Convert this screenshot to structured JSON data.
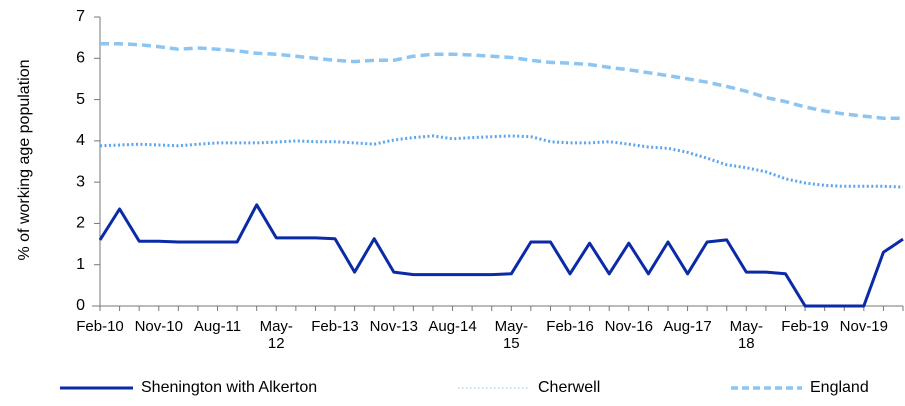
{
  "chart_data": {
    "type": "line",
    "ylabel": "% of working age population",
    "ylim": [
      0,
      7
    ],
    "yticks": [
      "0",
      "1",
      "2",
      "3",
      "4",
      "5",
      "6",
      "7"
    ],
    "x_tick_labels": [
      {
        "idx": 0,
        "lines": [
          "Feb-10"
        ]
      },
      {
        "idx": 3,
        "lines": [
          "Nov-10"
        ]
      },
      {
        "idx": 6,
        "lines": [
          "Aug-11"
        ]
      },
      {
        "idx": 9,
        "lines": [
          "May-",
          "12"
        ]
      },
      {
        "idx": 12,
        "lines": [
          "Feb-13"
        ]
      },
      {
        "idx": 15,
        "lines": [
          "Nov-13"
        ]
      },
      {
        "idx": 18,
        "lines": [
          "Aug-14"
        ]
      },
      {
        "idx": 21,
        "lines": [
          "May-",
          "15"
        ]
      },
      {
        "idx": 24,
        "lines": [
          "Feb-16"
        ]
      },
      {
        "idx": 27,
        "lines": [
          "Nov-16"
        ]
      },
      {
        "idx": 30,
        "lines": [
          "Aug-17"
        ]
      },
      {
        "idx": 33,
        "lines": [
          "May-",
          "18"
        ]
      },
      {
        "idx": 36,
        "lines": [
          "Feb-19"
        ]
      },
      {
        "idx": 39,
        "lines": [
          "Nov-19"
        ]
      }
    ],
    "grid": false,
    "legend_position": "bottom",
    "series": [
      {
        "name": "Shenington with Alkerton",
        "color": "#0b2aa6",
        "style": "solid",
        "values": [
          1.6,
          2.35,
          1.57,
          1.57,
          1.55,
          1.55,
          1.55,
          1.55,
          2.45,
          1.65,
          1.65,
          1.65,
          1.63,
          0.82,
          1.63,
          0.82,
          0.76,
          0.76,
          0.76,
          0.76,
          0.76,
          0.78,
          1.55,
          1.55,
          0.78,
          1.52,
          0.78,
          1.52,
          0.78,
          1.55,
          0.78,
          1.55,
          1.6,
          0.82,
          0.82,
          0.78,
          0.0,
          0.0,
          0.0,
          0.0,
          1.3,
          1.62
        ]
      },
      {
        "name": "Cherwell",
        "color": "#5aa6ee",
        "style": "dotted",
        "values": [
          3.88,
          3.9,
          3.92,
          3.9,
          3.88,
          3.92,
          3.95,
          3.95,
          3.95,
          3.97,
          4.0,
          3.98,
          3.98,
          3.95,
          3.92,
          4.02,
          4.08,
          4.12,
          4.05,
          4.08,
          4.1,
          4.12,
          4.1,
          3.98,
          3.95,
          3.95,
          3.98,
          3.92,
          3.85,
          3.82,
          3.72,
          3.58,
          3.42,
          3.35,
          3.25,
          3.08,
          2.98,
          2.92,
          2.9,
          2.9,
          2.9,
          2.88
        ]
      },
      {
        "name": "England",
        "color": "#8cc5f2",
        "style": "dashed",
        "values": [
          6.35,
          6.35,
          6.33,
          6.28,
          6.22,
          6.25,
          6.22,
          6.18,
          6.12,
          6.1,
          6.05,
          6.0,
          5.95,
          5.92,
          5.95,
          5.95,
          6.05,
          6.1,
          6.1,
          6.08,
          6.05,
          6.02,
          5.95,
          5.9,
          5.88,
          5.85,
          5.78,
          5.72,
          5.65,
          5.58,
          5.5,
          5.42,
          5.32,
          5.2,
          5.05,
          4.95,
          4.82,
          4.72,
          4.65,
          4.6,
          4.55,
          4.55
        ]
      }
    ]
  }
}
